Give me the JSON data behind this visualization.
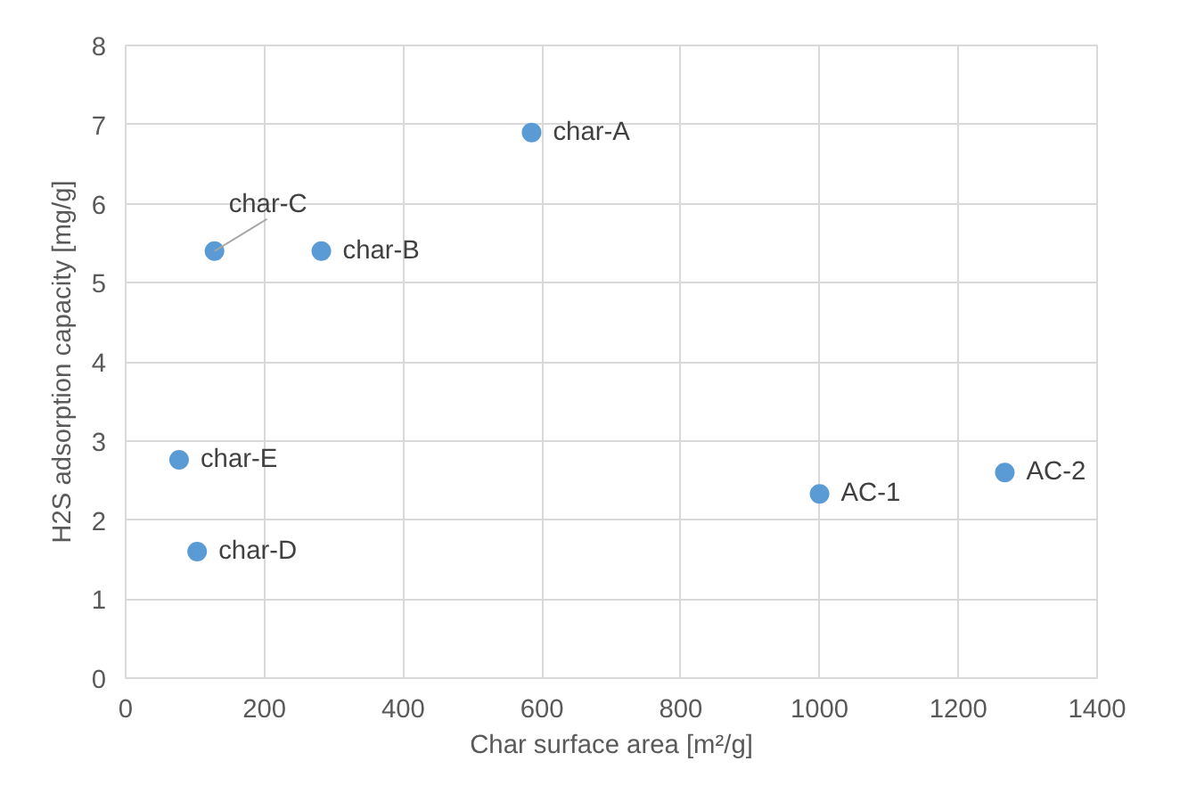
{
  "chart_data": {
    "type": "scatter",
    "xlabel": "Char surface area [m²/g]",
    "ylabel": "H2S adsorption capacity [mg/g]",
    "x": [
      585,
      282,
      128,
      103,
      77,
      1000,
      1267
    ],
    "series": [
      {
        "color": "#5b9bd5",
        "values": [
          6.9,
          5.4,
          5.4,
          1.6,
          2.76,
          2.33,
          2.6
        ]
      }
    ],
    "annotations": [
      {
        "text": "char-A",
        "x": 585,
        "y": 6.9
      },
      {
        "text": "char-B",
        "x": 282,
        "y": 5.4
      },
      {
        "text": "char-C",
        "x": 128,
        "y": 5.4
      },
      {
        "text": "char-D",
        "x": 103,
        "y": 1.6
      },
      {
        "text": "char-E",
        "x": 77,
        "y": 2.76
      },
      {
        "text": "AC-1",
        "x": 1000,
        "y": 2.33
      },
      {
        "text": "AC-2",
        "x": 1267,
        "y": 2.6
      }
    ],
    "xlim": [
      0,
      1400
    ],
    "xticks": [
      0,
      200,
      400,
      600,
      800,
      1000,
      1200,
      1400
    ],
    "ylim": [
      0,
      8
    ],
    "yticks": [
      0,
      1,
      2,
      3,
      4,
      5,
      6,
      7,
      8
    ],
    "grid": true,
    "marker": "circle"
  }
}
